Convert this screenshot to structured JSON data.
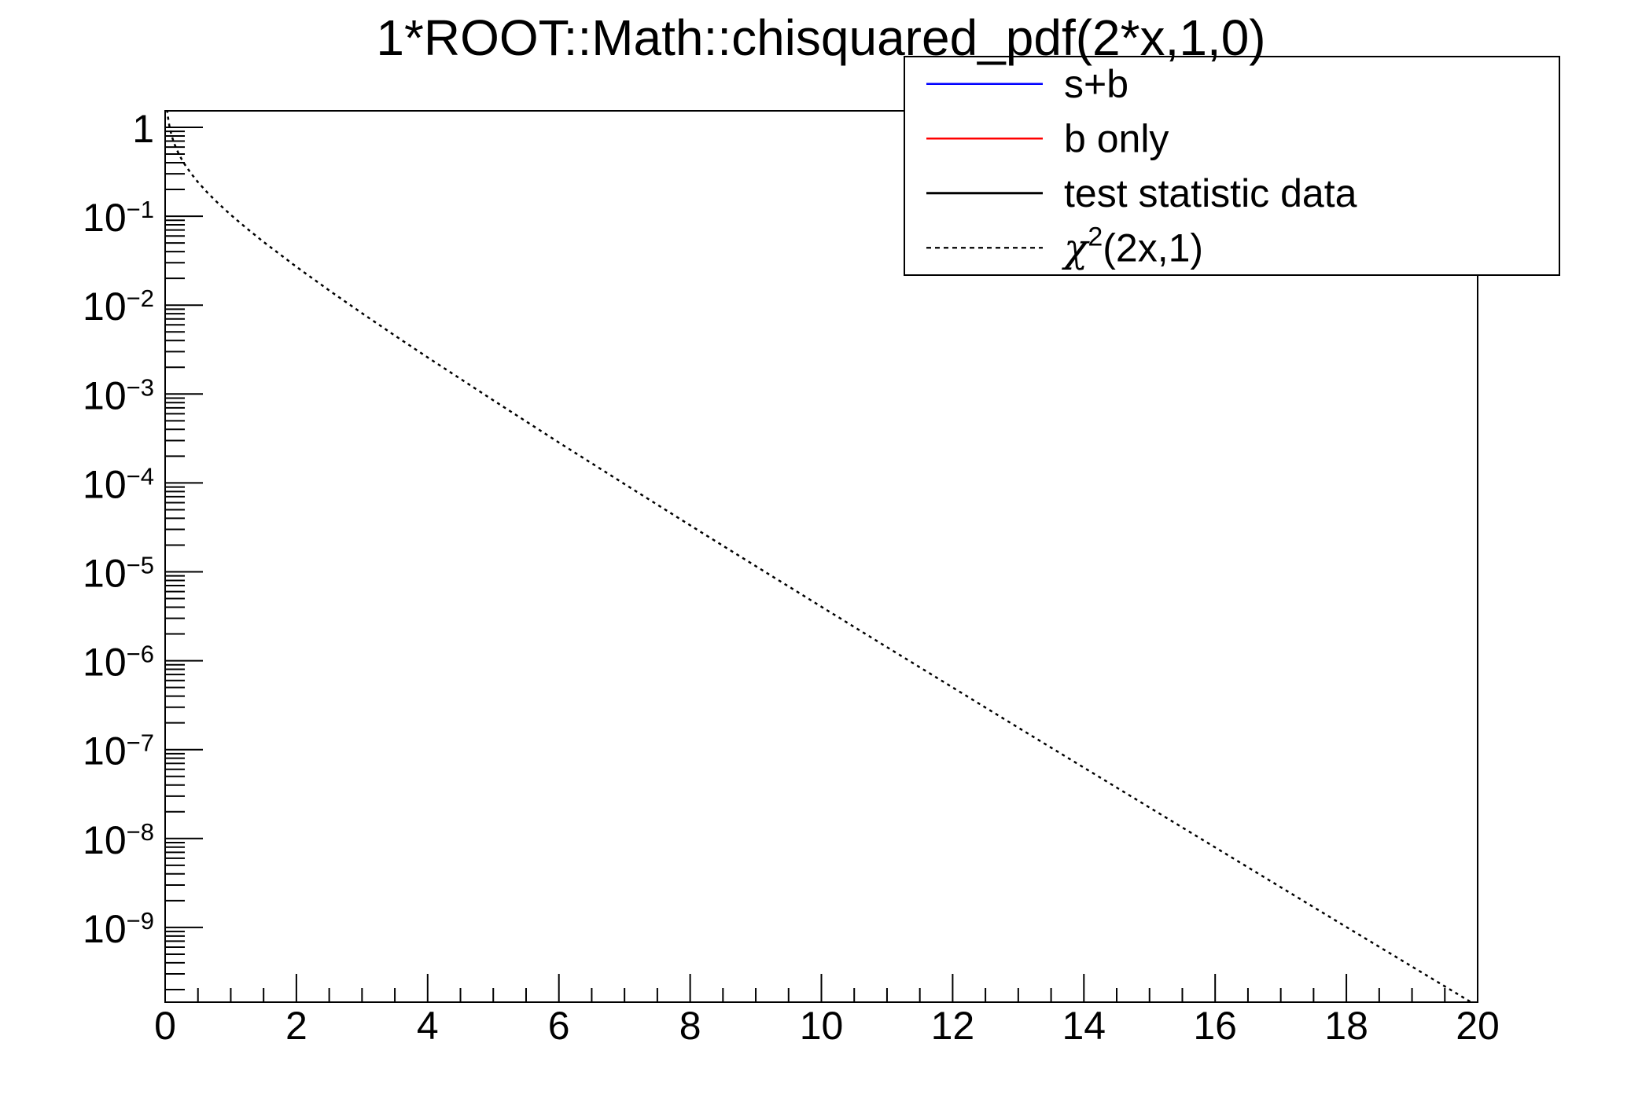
{
  "title": "1*ROOT::Math::chisquared_pdf(2*x,1,0)",
  "colors": {
    "background": "#ffffff",
    "frame": "#000000",
    "sb_line": "#0000ff",
    "bonly_line": "#ff0000",
    "test_stat_line": "#000000",
    "chi2_curve": "#000000"
  },
  "legend": {
    "entries": [
      {
        "pre": "s+b",
        "sup": "",
        "post": "",
        "color": "#0000ff",
        "style": "solid"
      },
      {
        "pre": "b only",
        "sup": "",
        "post": "",
        "color": "#ff0000",
        "style": "solid"
      },
      {
        "pre": "test statistic data",
        "sup": "",
        "post": "",
        "color": "#000000",
        "style": "solid"
      },
      {
        "pre": "χ",
        "sup": "2",
        "post": "(2x,1)",
        "color": "#000000",
        "style": "dotted"
      }
    ]
  },
  "chart_data": {
    "type": "line",
    "title": "1*ROOT::Math::chisquared_pdf(2*x,1,0)",
    "grid": false,
    "legend_position": "top-right",
    "x_axis": {
      "min": 0,
      "max": 20,
      "major_step": 2,
      "minor_step": 0.5,
      "tick_labels": [
        "0",
        "2",
        "4",
        "6",
        "8",
        "10",
        "12",
        "14",
        "16",
        "18",
        "20"
      ]
    },
    "y_axis": {
      "scale": "log",
      "min": 1.45e-10,
      "max": 1.53,
      "major_tick_exponents": [
        0,
        -1,
        -2,
        -3,
        -4,
        -5,
        -6,
        -7,
        -8,
        -9
      ],
      "tick_labels": [
        {
          "base": "1",
          "exp": ""
        },
        {
          "base": "10",
          "exp": "−1"
        },
        {
          "base": "10",
          "exp": "−2"
        },
        {
          "base": "10",
          "exp": "−3"
        },
        {
          "base": "10",
          "exp": "−4"
        },
        {
          "base": "10",
          "exp": "−5"
        },
        {
          "base": "10",
          "exp": "−6"
        },
        {
          "base": "10",
          "exp": "−7"
        },
        {
          "base": "10",
          "exp": "−8"
        },
        {
          "base": "10",
          "exp": "−9"
        }
      ]
    },
    "series": [
      {
        "name": "s+b",
        "color": "#0000ff",
        "line_style": "solid",
        "points": []
      },
      {
        "name": "b only",
        "color": "#ff0000",
        "line_style": "solid",
        "points": []
      },
      {
        "name": "test statistic data",
        "color": "#000000",
        "line_style": "solid",
        "points": []
      },
      {
        "name": "chi2(2x,1)",
        "color": "#000000",
        "line_style": "dotted",
        "points": [
          [
            0.03,
            1.58
          ],
          [
            0.04,
            1.355
          ],
          [
            0.05,
            1.2
          ],
          [
            0.065,
            1.036
          ],
          [
            0.08,
            0.92
          ],
          [
            0.1,
            0.807
          ],
          [
            0.12,
            0.722
          ],
          [
            0.15,
            0.627
          ],
          [
            0.2,
            0.516
          ],
          [
            0.25,
            0.439
          ],
          [
            0.3,
            0.3814
          ],
          [
            0.4,
            0.2989
          ],
          [
            0.5,
            0.2419
          ],
          [
            0.65,
            0.1826
          ],
          [
            0.8,
            0.1417
          ],
          [
            1.0,
            0.1037
          ],
          [
            1.25,
            0.0723
          ],
          [
            1.5,
            0.0514
          ],
          [
            2,
            0.027
          ],
          [
            2.5,
            0.01464
          ],
          [
            3,
            0.00811
          ],
          [
            3.5,
            0.00455
          ],
          [
            4,
            0.00258
          ],
          [
            5,
            0.00085
          ],
          [
            6,
            0.000285
          ],
          [
            7,
            9.72e-05
          ],
          [
            8,
            3.34e-05
          ],
          [
            9,
            1.16e-05
          ],
          [
            10,
            4.05e-06
          ],
          [
            11,
            1.42e-06
          ],
          [
            12,
            5e-07
          ],
          [
            13,
            1.77e-07
          ],
          [
            14,
            6.27e-08
          ],
          [
            15,
            2.23e-08
          ],
          [
            16,
            7.94e-09
          ],
          [
            17,
            2.83e-09
          ],
          [
            18,
            1.01e-09
          ],
          [
            19,
            3.63e-10
          ],
          [
            19.95,
            1.37e-10
          ]
        ]
      }
    ]
  }
}
